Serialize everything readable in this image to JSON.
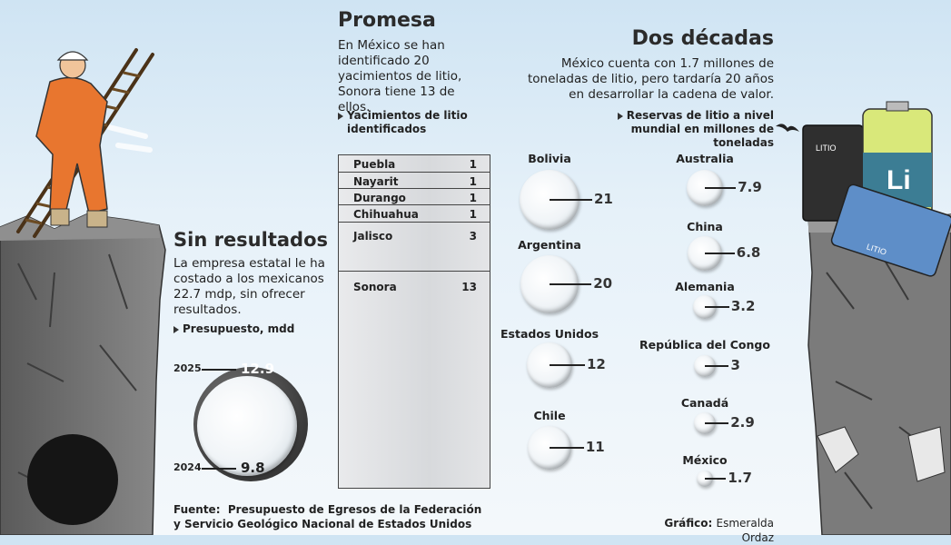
{
  "colors": {
    "sky": "#cfe4f3",
    "rock": "#6d6d6d",
    "table_fill": "#dadbde",
    "text": "#222222",
    "bar_dark": "#3a3a3a"
  },
  "icons": [
    "worker-with-ladder-illustration",
    "rock-cliff-left",
    "rock-cliff-right",
    "lithium-battery-illustration",
    "bird-icon"
  ],
  "promesa": {
    "title": "Promesa",
    "text": "En México se han identificado 20 yacimientos de litio, Sonora tiene 13 de ellos.",
    "legend": "Yacimientos de litio identificados"
  },
  "decadas": {
    "title": "Dos décadas",
    "text": "México cuenta con 1.7 millones de toneladas de litio, pero tardaría 20 años en desarrollar la cadena de valor.",
    "legend": "Reservas de litio a nivel mundial en millones de toneladas"
  },
  "sin": {
    "title": "Sin resultados",
    "text": "La empresa estatal le ha costado a los mexicanos 22.7 mdp, sin ofrecer resultados.",
    "legend": "Presupuesto, mdd"
  },
  "battery": {
    "label1": "LITIO",
    "label2": "Li",
    "label3": "LITIO"
  },
  "source": {
    "label": "Fuente:",
    "line1": "Presupuesto de Egresos de la Federación",
    "line2": "y Servicio Geológico Nacional de Estados Unidos"
  },
  "credit": {
    "label": "Gráfico:",
    "name": "Esmeralda Ordaz"
  },
  "chart_data": [
    {
      "type": "table",
      "title": "Yacimientos de litio identificados",
      "rows": [
        {
          "name": "Puebla",
          "value": 1
        },
        {
          "name": "Nayarit",
          "value": 1
        },
        {
          "name": "Durango",
          "value": 1
        },
        {
          "name": "Chihuahua",
          "value": 1
        },
        {
          "name": "Jalisco",
          "value": 3
        },
        {
          "name": "Sonora",
          "value": 13
        }
      ]
    },
    {
      "type": "bubble",
      "title": "Reservas de litio a nivel mundial en millones de toneladas",
      "left": [
        {
          "name": "Bolivia",
          "value": 21
        },
        {
          "name": "Argentina",
          "value": 20
        },
        {
          "name": "Estados Unidos",
          "value": 12
        },
        {
          "name": "Chile",
          "value": 11
        }
      ],
      "right": [
        {
          "name": "Australia",
          "value": 7.9
        },
        {
          "name": "China",
          "value": 6.8
        },
        {
          "name": "Alemania",
          "value": 3.2
        },
        {
          "name": "República del Congo",
          "value": 3
        },
        {
          "name": "Canadá",
          "value": 2.9
        },
        {
          "name": "México",
          "value": 1.7
        }
      ]
    },
    {
      "type": "bubble",
      "title": "Presupuesto, mdd",
      "series": [
        {
          "name": "2025",
          "value": 12.9
        },
        {
          "name": "2024",
          "value": 9.8
        }
      ]
    }
  ]
}
